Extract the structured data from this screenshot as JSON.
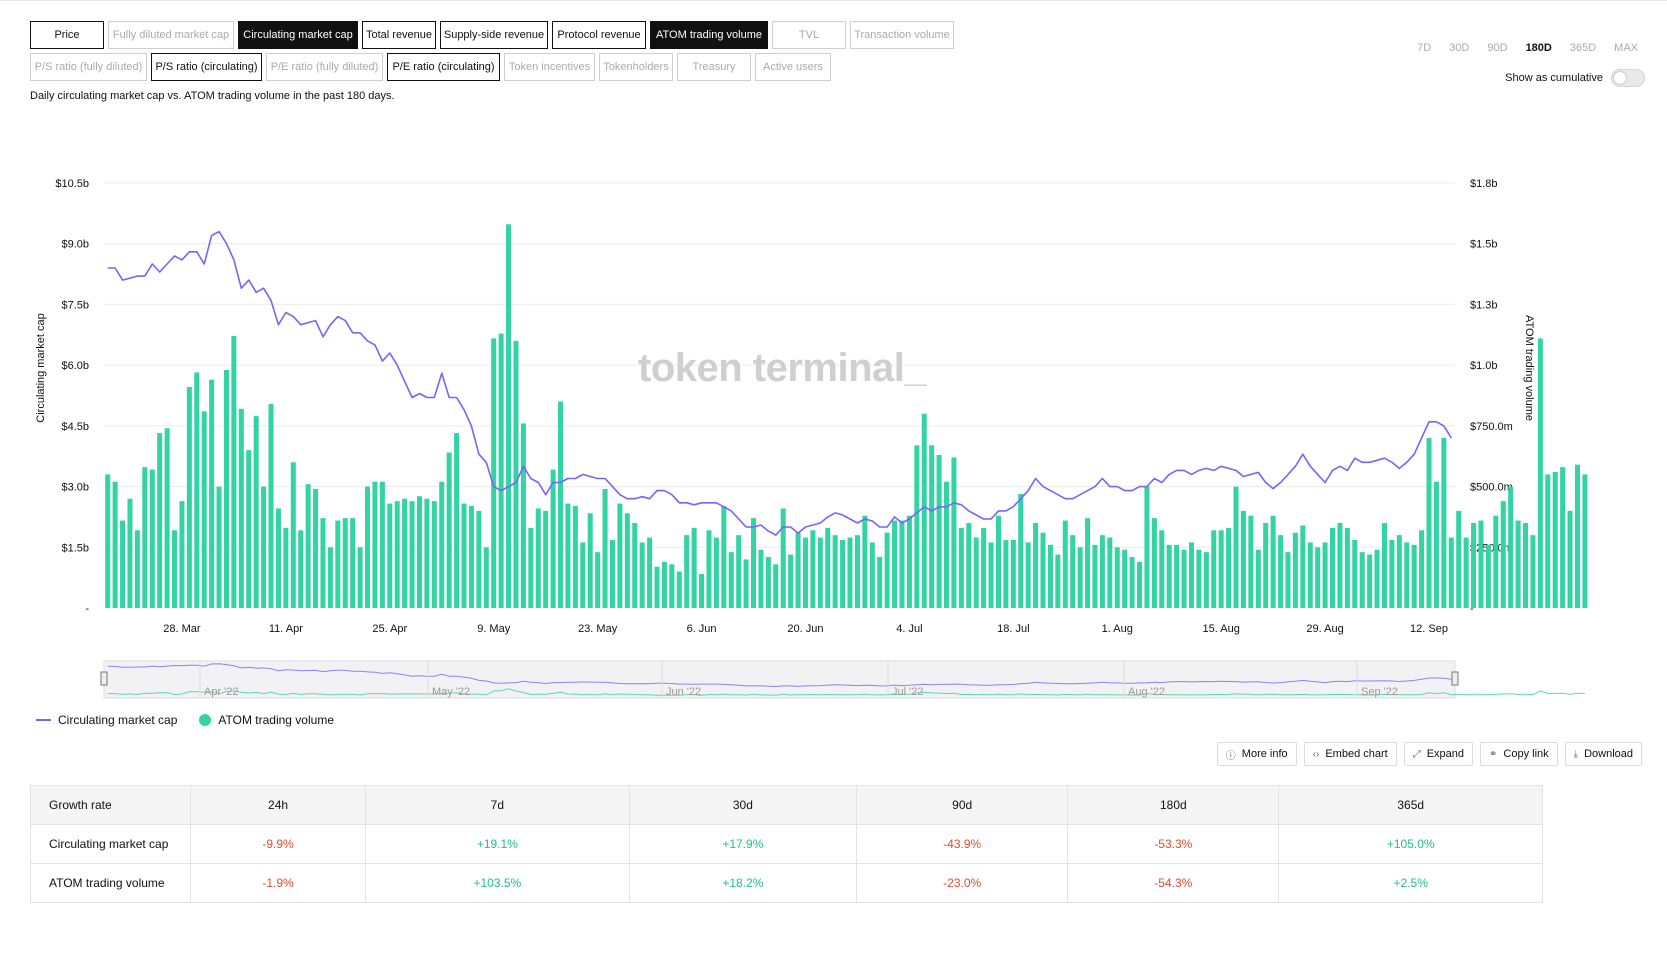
{
  "tabs_row1": [
    {
      "label": "Price",
      "state": "on"
    },
    {
      "label": "Fully diluted market cap",
      "state": "off"
    },
    {
      "label": "Circulating market cap",
      "state": "selected"
    },
    {
      "label": "Total revenue",
      "state": "on"
    },
    {
      "label": "Supply-side revenue",
      "state": "on"
    },
    {
      "label": "Protocol revenue",
      "state": "on"
    },
    {
      "label": "ATOM trading volume",
      "state": "selected"
    },
    {
      "label": "TVL",
      "state": "off"
    },
    {
      "label": "Transaction volume",
      "state": "off"
    }
  ],
  "tabs_row2": [
    {
      "label": "P/S ratio (fully diluted)",
      "state": "off"
    },
    {
      "label": "P/S ratio (circulating)",
      "state": "on"
    },
    {
      "label": "P/E ratio (fully diluted)",
      "state": "off"
    },
    {
      "label": "P/E ratio (circulating)",
      "state": "on"
    },
    {
      "label": "Token incentives",
      "state": "off"
    },
    {
      "label": "Tokenholders",
      "state": "off"
    },
    {
      "label": "Treasury",
      "state": "off"
    },
    {
      "label": "Active users",
      "state": "off"
    }
  ],
  "ranges": [
    {
      "label": "7D",
      "active": false
    },
    {
      "label": "30D",
      "active": false
    },
    {
      "label": "90D",
      "active": false
    },
    {
      "label": "180D",
      "active": true
    },
    {
      "label": "365D",
      "active": false
    },
    {
      "label": "MAX",
      "active": false
    }
  ],
  "cumulative_label": "Show as cumulative",
  "description": "Daily circulating market cap vs. ATOM trading volume in the past 180 days.",
  "watermark": "token terminal_",
  "actions": {
    "more_info": "More info",
    "embed": "Embed chart",
    "expand": "Expand",
    "copy": "Copy link",
    "download": "Download"
  },
  "colors": {
    "line": "#7b61ff",
    "bars": "#33d4a4",
    "negative": "#e54a2e",
    "positive": "#1fc08a"
  },
  "chart_data": {
    "type": "bar+line",
    "x_tick_labels": [
      "28. Mar",
      "11. Apr",
      "25. Apr",
      "9. May",
      "23. May",
      "6. Jun",
      "20. Jun",
      "4. Jul",
      "18. Jul",
      "1. Aug",
      "15. Aug",
      "29. Aug",
      "12. Sep"
    ],
    "ylabel_left": "Circulating market cap",
    "ylabel_right": "ATOM trading volume",
    "left_ticks": [
      "-",
      "$1.5b",
      "$3.0b",
      "$4.5b",
      "$6.0b",
      "$7.5b",
      "$9.0b",
      "$10.5b"
    ],
    "right_ticks": [
      "-",
      "$250.0m",
      "$500.0m",
      "$750.0m",
      "$1.0b",
      "$1.3b",
      "$1.5b",
      "$1.8b"
    ],
    "left_max": 10.5,
    "right_max": 1.75,
    "grid": true,
    "navigator_labels": [
      "Apr '22",
      "May '22",
      "Jun '22",
      "Jul '22",
      "Aug '22",
      "Sep '22"
    ],
    "series": [
      {
        "name": "Circulating market cap",
        "axis": "left",
        "unit": "$b",
        "values": [
          8.4,
          8.4,
          8.1,
          8.15,
          8.2,
          8.2,
          8.5,
          8.3,
          8.5,
          8.7,
          8.6,
          8.8,
          8.8,
          8.5,
          9.2,
          9.3,
          9.0,
          8.6,
          7.9,
          8.1,
          7.8,
          7.9,
          7.6,
          7.0,
          7.3,
          7.2,
          7.0,
          7.05,
          7.1,
          6.7,
          7.0,
          7.2,
          7.1,
          6.8,
          6.8,
          6.6,
          6.5,
          6.1,
          6.3,
          6.0,
          5.6,
          5.2,
          5.3,
          5.2,
          5.2,
          5.8,
          5.2,
          5.2,
          4.9,
          4.5,
          3.8,
          3.6,
          3.0,
          2.9,
          3.0,
          3.1,
          3.5,
          3.2,
          3.1,
          2.8,
          3.1,
          3.1,
          3.2,
          3.2,
          3.3,
          3.25,
          3.2,
          3.2,
          3.0,
          2.8,
          2.7,
          2.7,
          2.75,
          2.7,
          2.9,
          2.9,
          2.8,
          2.6,
          2.6,
          2.55,
          2.6,
          2.6,
          2.6,
          2.5,
          2.4,
          2.2,
          2.0,
          2.0,
          2.05,
          1.9,
          1.8,
          2.0,
          2.0,
          1.85,
          2.0,
          2.05,
          2.1,
          2.25,
          2.35,
          2.3,
          2.2,
          2.1,
          2.2,
          2.15,
          2.0,
          2.0,
          2.25,
          2.1,
          2.2,
          2.35,
          2.5,
          2.4,
          2.5,
          2.5,
          2.6,
          2.55,
          2.4,
          2.3,
          2.2,
          2.2,
          2.4,
          2.4,
          2.5,
          2.7,
          2.9,
          3.2,
          3.0,
          2.9,
          2.8,
          2.7,
          2.7,
          2.8,
          2.9,
          3.0,
          3.2,
          3.0,
          3.0,
          2.9,
          2.9,
          3.0,
          3.0,
          3.2,
          3.1,
          3.3,
          3.4,
          3.4,
          3.3,
          3.4,
          3.45,
          3.4,
          3.5,
          3.45,
          3.4,
          3.25,
          3.3,
          3.35,
          3.1,
          2.95,
          3.1,
          3.3,
          3.5,
          3.8,
          3.5,
          3.3,
          3.1,
          3.4,
          3.5,
          3.4,
          3.7,
          3.6,
          3.6,
          3.65,
          3.7,
          3.6,
          3.45,
          3.6,
          3.8,
          4.2,
          4.6,
          4.6,
          4.5,
          4.2
        ]
      },
      {
        "name": "ATOM trading volume",
        "axis": "right",
        "unit": "$m",
        "values": [
          550,
          520,
          360,
          450,
          320,
          580,
          570,
          720,
          740,
          320,
          440,
          910,
          970,
          810,
          940,
          500,
          980,
          1120,
          820,
          650,
          790,
          500,
          840,
          410,
          330,
          600,
          320,
          510,
          490,
          370,
          250,
          360,
          370,
          370,
          250,
          500,
          520,
          520,
          430,
          440,
          450,
          440,
          460,
          450,
          440,
          520,
          640,
          720,
          430,
          420,
          400,
          250,
          1110,
          1130,
          1580,
          1100,
          760,
          330,
          410,
          400,
          570,
          850,
          430,
          420,
          270,
          390,
          230,
          490,
          280,
          430,
          390,
          350,
          270,
          290,
          170,
          190,
          180,
          150,
          300,
          330,
          140,
          320,
          290,
          420,
          230,
          300,
          200,
          370,
          240,
          210,
          180,
          410,
          220,
          310,
          290,
          320,
          290,
          330,
          300,
          280,
          290,
          300,
          380,
          270,
          210,
          310,
          360,
          360,
          380,
          670,
          800,
          670,
          630,
          520,
          620,
          330,
          350,
          290,
          330,
          270,
          380,
          280,
          280,
          470,
          270,
          350,
          310,
          260,
          220,
          360,
          300,
          250,
          370,
          260,
          300,
          290,
          250,
          240,
          210,
          190,
          500,
          370,
          320,
          260,
          260,
          240,
          270,
          240,
          230,
          320,
          320,
          330,
          500,
          400,
          380,
          240,
          350,
          380,
          300,
          230,
          310,
          340,
          270,
          250,
          270,
          330,
          350,
          330,
          280,
          230,
          220,
          240,
          350,
          280,
          300,
          270,
          260,
          320,
          700,
          520,
          700,
          290,
          400,
          290,
          350,
          360,
          260,
          380,
          440,
          500,
          360,
          350,
          300,
          1110,
          550,
          560,
          580,
          400,
          590,
          550
        ]
      }
    ]
  },
  "growth_table": {
    "headers": [
      "Growth rate",
      "24h",
      "7d",
      "30d",
      "90d",
      "180d",
      "365d"
    ],
    "rows": [
      {
        "label": "Circulating market cap",
        "cells": [
          {
            "v": "-9.9%",
            "sign": "neg"
          },
          {
            "v": "+19.1%",
            "sign": "pos"
          },
          {
            "v": "+17.9%",
            "sign": "pos"
          },
          {
            "v": "-43.9%",
            "sign": "neg"
          },
          {
            "v": "-53.3%",
            "sign": "neg"
          },
          {
            "v": "+105.0%",
            "sign": "pos"
          }
        ]
      },
      {
        "label": "ATOM trading volume",
        "cells": [
          {
            "v": "-1.9%",
            "sign": "neg"
          },
          {
            "v": "+103.5%",
            "sign": "pos"
          },
          {
            "v": "+18.2%",
            "sign": "pos"
          },
          {
            "v": "-23.0%",
            "sign": "neg"
          },
          {
            "v": "-54.3%",
            "sign": "neg"
          },
          {
            "v": "+2.5%",
            "sign": "pos"
          }
        ]
      }
    ]
  }
}
